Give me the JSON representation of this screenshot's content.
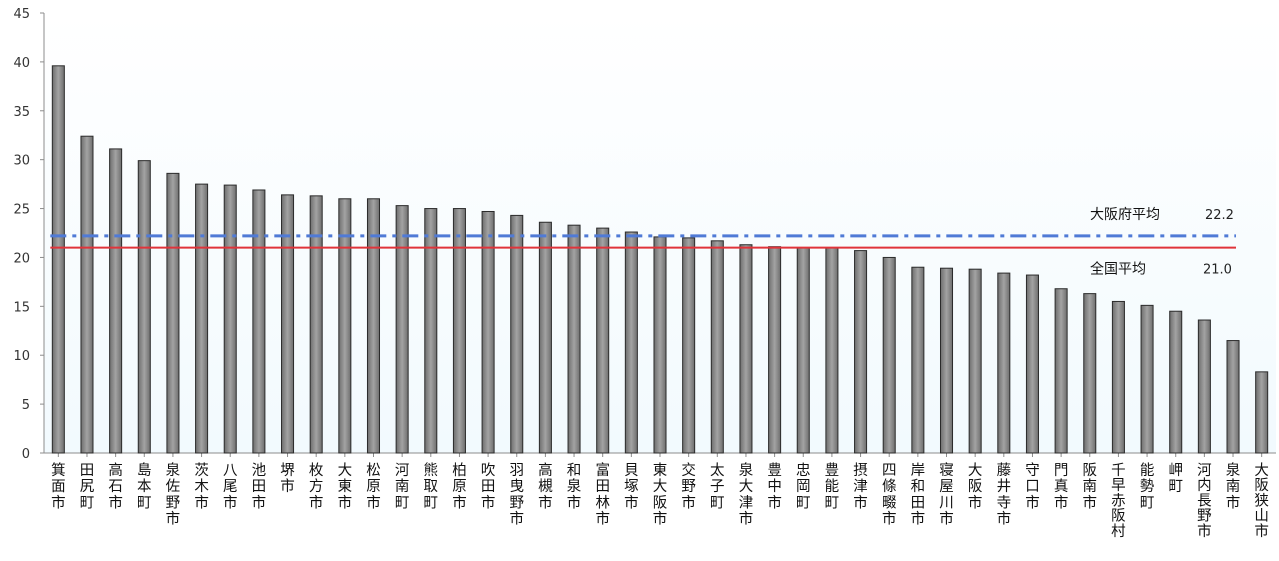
{
  "chart_data": {
    "type": "bar",
    "title": "",
    "xlabel": "",
    "ylabel": "",
    "ylim": [
      0,
      45
    ],
    "yticks": [
      0,
      5,
      10,
      15,
      20,
      25,
      30,
      35,
      40,
      45
    ],
    "grid": false,
    "categories": [
      "箕面市",
      "田尻町",
      "高石市",
      "島本町",
      "泉佐野市",
      "茨木市",
      "八尾市",
      "池田市",
      "堺市",
      "枚方市",
      "大東市",
      "松原市",
      "河南町",
      "熊取町",
      "柏原市",
      "吹田市",
      "羽曳野市",
      "高槻市",
      "和泉市",
      "富田林市",
      "貝塚市",
      "東大阪市",
      "交野市",
      "太子町",
      "泉大津市",
      "豊中市",
      "忠岡町",
      "豊能町",
      "摂津市",
      "四條畷市",
      "岸和田市",
      "寝屋川市",
      "大阪市",
      "藤井寺市",
      "守口市",
      "門真市",
      "阪南市",
      "千早赤阪村",
      "能勢町",
      "岬町",
      "河内長野市",
      "泉南市",
      "大阪狭山市"
    ],
    "values": [
      39.6,
      32.4,
      31.1,
      29.9,
      28.6,
      27.5,
      27.4,
      26.9,
      26.4,
      26.3,
      26.0,
      26.0,
      25.3,
      25.0,
      25.0,
      24.7,
      24.3,
      23.6,
      23.3,
      23.0,
      22.6,
      22.1,
      22.0,
      21.7,
      21.3,
      21.1,
      21.0,
      21.0,
      20.7,
      20.0,
      19.0,
      18.9,
      18.8,
      18.4,
      18.2,
      16.8,
      16.3,
      15.5,
      15.1,
      14.5,
      13.6,
      11.5,
      8.3
    ],
    "bar_color": "#8a8a8a",
    "reference_lines": [
      {
        "label": "大阪府平均",
        "value_text": "22.2",
        "value": 22.2,
        "style": "dash-dot",
        "color": "#4f7ad6"
      },
      {
        "label": "全国平均",
        "value_text": "21.0",
        "value": 21.0,
        "style": "solid",
        "color": "#e0333a"
      }
    ]
  }
}
